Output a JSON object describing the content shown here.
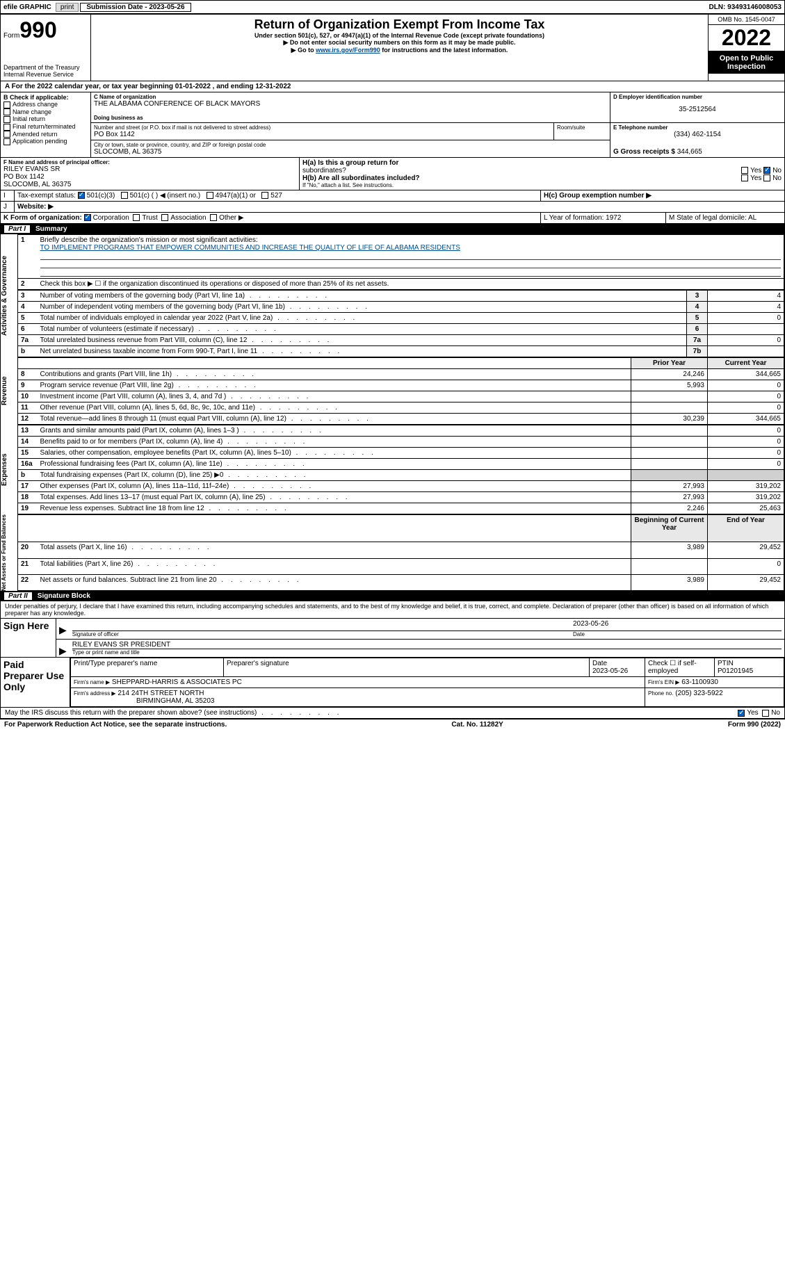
{
  "topbar": {
    "efile": "efile GRAPHIC",
    "print": "print",
    "subLabel": "Submission Date - 2023-05-26",
    "dln": "DLN: 93493146008053"
  },
  "header": {
    "form": "Form",
    "num": "990",
    "dept": "Department of the Treasury",
    "irs": "Internal Revenue Service",
    "title": "Return of Organization Exempt From Income Tax",
    "sub1": "Under section 501(c), 527, or 4947(a)(1) of the Internal Revenue Code (except private foundations)",
    "sub2": "▶ Do not enter social security numbers on this form as it may be made public.",
    "sub3": "▶ Go to ",
    "link": "www.irs.gov/Form990",
    "sub3b": " for instructions and the latest information.",
    "omb": "OMB No. 1545-0047",
    "year": "2022",
    "open": "Open to Public Inspection"
  },
  "A": {
    "text": "For the 2022 calendar year, or tax year beginning 01-01-2022   , and ending 12-31-2022"
  },
  "B": {
    "hdr": "B Check if applicable:",
    "opts": [
      "Address change",
      "Name change",
      "Initial return",
      "Final return/terminated",
      "Amended return",
      "Application pending"
    ]
  },
  "C": {
    "nameLbl": "C Name of organization",
    "name": "THE ALABAMA CONFERENCE OF BLACK MAYORS",
    "dbaLbl": "Doing business as",
    "dba": "",
    "addrLbl": "Number and street (or P.O. box if mail is not delivered to street address)",
    "room": "Room/suite",
    "addr": "PO Box 1142",
    "cityLbl": "City or town, state or province, country, and ZIP or foreign postal code",
    "city": "SLOCOMB, AL  36375"
  },
  "D": {
    "lbl": "D Employer identification number",
    "val": "35-2512564"
  },
  "E": {
    "lbl": "E Telephone number",
    "val": "(334) 462-1154"
  },
  "G": {
    "lbl": "G Gross receipts $",
    "val": "344,665"
  },
  "F": {
    "lbl": "F  Name and address of principal officer:",
    "name": "RILEY EVANS SR",
    "addr": "PO Box 1142",
    "city": "SLOCOMB, AL  36375"
  },
  "H": {
    "a": "H(a)  Is this a group return for",
    "a2": "subordinates?",
    "yes": "Yes",
    "no": "No",
    "b": "H(b)  Are all subordinates included?",
    "bNote": "If \"No,\" attach a list. See instructions.",
    "c": "H(c)  Group exemption number ▶"
  },
  "I": {
    "lbl": "Tax-exempt status:",
    "o1": "501(c)(3)",
    "o2": "501(c) (  ) ◀ (insert no.)",
    "o3": "4947(a)(1) or",
    "o4": "527"
  },
  "J": {
    "lbl": "Website: ▶"
  },
  "K": {
    "lbl": "K Form of organization:",
    "o1": "Corporation",
    "o2": "Trust",
    "o3": "Association",
    "o4": "Other ▶"
  },
  "L": {
    "lbl": "L Year of formation: 1972"
  },
  "M": {
    "lbl": "M State of legal domicile: AL"
  },
  "part1": {
    "hdr": "Part I",
    "title": "Summary"
  },
  "summary": {
    "line1": "Briefly describe the organization's mission or most significant activities:",
    "mission": "TO IMPLEMENT PROGRAMS THAT EMPOWER COMMUNITIES AND INCREASE THE QUALITY OF LIFE OF ALABAMA RESIDENTS",
    "line2": "Check this box ▶ ☐ if the organization discontinued its operations or disposed of more than 25% of its net assets.",
    "rows": [
      {
        "n": "3",
        "t": "Number of voting members of the governing body (Part VI, line 1a)",
        "box": "3",
        "v": "4"
      },
      {
        "n": "4",
        "t": "Number of independent voting members of the governing body (Part VI, line 1b)",
        "box": "4",
        "v": "4"
      },
      {
        "n": "5",
        "t": "Total number of individuals employed in calendar year 2022 (Part V, line 2a)",
        "box": "5",
        "v": "0"
      },
      {
        "n": "6",
        "t": "Total number of volunteers (estimate if necessary)",
        "box": "6",
        "v": ""
      },
      {
        "n": "7a",
        "t": "Total unrelated business revenue from Part VIII, column (C), line 12",
        "box": "7a",
        "v": "0"
      },
      {
        "n": "b",
        "t": "Net unrelated business taxable income from Form 990-T, Part I, line 11",
        "box": "7b",
        "v": ""
      }
    ],
    "priorYear": "Prior Year",
    "currentYear": "Current Year",
    "rev": [
      {
        "n": "8",
        "t": "Contributions and grants (Part VIII, line 1h)",
        "p": "24,246",
        "c": "344,665"
      },
      {
        "n": "9",
        "t": "Program service revenue (Part VIII, line 2g)",
        "p": "5,993",
        "c": "0"
      },
      {
        "n": "10",
        "t": "Investment income (Part VIII, column (A), lines 3, 4, and 7d )",
        "p": "",
        "c": "0"
      },
      {
        "n": "11",
        "t": "Other revenue (Part VIII, column (A), lines 5, 6d, 8c, 9c, 10c, and 11e)",
        "p": "",
        "c": "0"
      },
      {
        "n": "12",
        "t": "Total revenue—add lines 8 through 11 (must equal Part VIII, column (A), line 12)",
        "p": "30,239",
        "c": "344,665"
      }
    ],
    "exp": [
      {
        "n": "13",
        "t": "Grants and similar amounts paid (Part IX, column (A), lines 1–3 )",
        "p": "",
        "c": "0"
      },
      {
        "n": "14",
        "t": "Benefits paid to or for members (Part IX, column (A), line 4)",
        "p": "",
        "c": "0"
      },
      {
        "n": "15",
        "t": "Salaries, other compensation, employee benefits (Part IX, column (A), lines 5–10)",
        "p": "",
        "c": "0"
      },
      {
        "n": "16a",
        "t": "Professional fundraising fees (Part IX, column (A), line 11e)",
        "p": "",
        "c": "0"
      },
      {
        "n": "b",
        "t": "Total fundraising expenses (Part IX, column (D), line 25) ▶0",
        "p": "",
        "c": ""
      },
      {
        "n": "17",
        "t": "Other expenses (Part IX, column (A), lines 11a–11d, 11f–24e)",
        "p": "27,993",
        "c": "319,202"
      },
      {
        "n": "18",
        "t": "Total expenses. Add lines 13–17 (must equal Part IX, column (A), line 25)",
        "p": "27,993",
        "c": "319,202"
      },
      {
        "n": "19",
        "t": "Revenue less expenses. Subtract line 18 from line 12",
        "p": "2,246",
        "c": "25,463"
      }
    ],
    "begYear": "Beginning of Current Year",
    "endYear": "End of Year",
    "bal": [
      {
        "n": "20",
        "t": "Total assets (Part X, line 16)",
        "p": "3,989",
        "c": "29,452"
      },
      {
        "n": "21",
        "t": "Total liabilities (Part X, line 26)",
        "p": "",
        "c": "0"
      },
      {
        "n": "22",
        "t": "Net assets or fund balances. Subtract line 21 from line 20",
        "p": "3,989",
        "c": "29,452"
      }
    ]
  },
  "sections": {
    "gov": "Activities & Governance",
    "rev": "Revenue",
    "exp": "Expenses",
    "bal": "Net Assets or Fund Balances"
  },
  "part2": {
    "hdr": "Part II",
    "title": "Signature Block"
  },
  "sig": {
    "penalty": "Under penalties of perjury, I declare that I have examined this return, including accompanying schedules and statements, and to the best of my knowledge and belief, it is true, correct, and complete. Declaration of preparer (other than officer) is based on all information of which preparer has any knowledge.",
    "signHere": "Sign Here",
    "sigOff": "Signature of officer",
    "date": "Date",
    "sigDate": "2023-05-26",
    "name": "RILEY EVANS SR  PRESIDENT",
    "typeLbl": "Type or print name and title",
    "paid": "Paid Preparer Use Only",
    "prepName": "Print/Type preparer's name",
    "prepSig": "Preparer's signature",
    "prepDate": "Date",
    "prepDateVal": "2023-05-26",
    "checkIf": "Check ☐ if self-employed",
    "ptin": "PTIN",
    "ptinVal": "P01201945",
    "firm": "Firm's name    ▶",
    "firmVal": "SHEPPARD-HARRIS & ASSOCIATES PC",
    "firmEIN": "Firm's EIN ▶",
    "firmEINVal": "63-1100930",
    "firmAddr": "Firm's address ▶",
    "firmAddrVal": "214 24TH STREET NORTH",
    "firmCity": "BIRMINGHAM, AL  35203",
    "phone": "Phone no.",
    "phoneVal": "(205) 323-5922",
    "discuss": "May the IRS discuss this return with the preparer shown above? (see instructions)"
  },
  "footer": {
    "left": "For Paperwork Reduction Act Notice, see the separate instructions.",
    "mid": "Cat. No. 11282Y",
    "right": "Form 990 (2022)"
  }
}
